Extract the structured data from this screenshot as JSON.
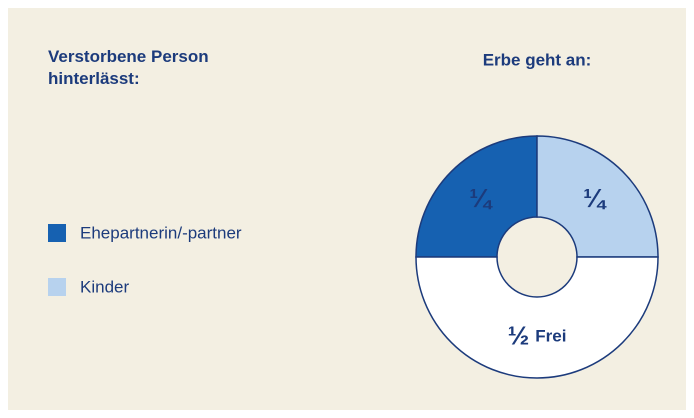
{
  "chart_data": {
    "type": "donut",
    "title": "Verstorbene Person hinterlässt:",
    "subtitle": "Erbe geht an:",
    "categories": [
      "Ehepartnerin/-partner",
      "Kinder",
      "Frei"
    ],
    "values": [
      0.25,
      0.25,
      0.5
    ],
    "value_labels": [
      "¼",
      "¼",
      "½"
    ],
    "colors": [
      "#1661b1",
      "#b7d2ee",
      "#ffffff"
    ],
    "show_in_legend": [
      true,
      true,
      false
    ]
  }
}
